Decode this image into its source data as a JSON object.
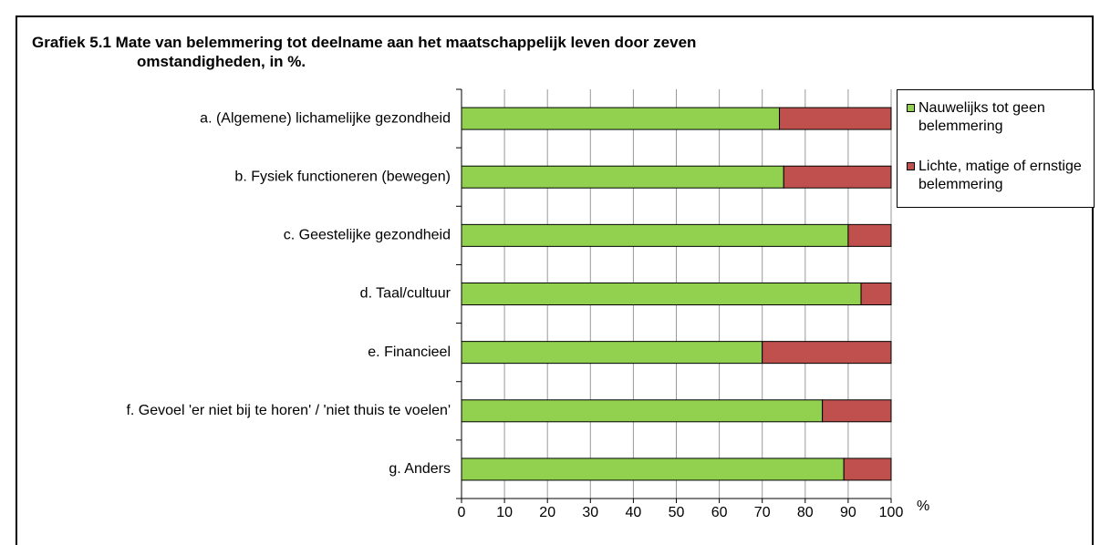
{
  "chart_data": {
    "type": "stacked_barh",
    "title": "Grafiek 5.1 Mate van belemmering tot deelname aan het maatschappelijk leven door zeven omstandigheden, in %.",
    "xlabel": "%",
    "categories": [
      "a. (Algemene) lichamelijke gezondheid",
      "b. Fysiek functioneren (bewegen)",
      "c. Geestelijke gezondheid",
      "d. Taal/cultuur",
      "e. Financieel",
      "f. Gevoel 'er niet bij te horen' / 'niet thuis te voelen'",
      "g. Anders"
    ],
    "series": [
      {
        "name": "Nauwelijks tot geen belemmering",
        "color": "#92d050",
        "values": [
          74,
          75,
          90,
          93,
          70,
          84,
          89
        ]
      },
      {
        "name": "Lichte, matige of ern­stige belemmering",
        "color": "#c0504d",
        "values": [
          26,
          25,
          10,
          7,
          30,
          16,
          11
        ]
      }
    ],
    "xlim": [
      0,
      100
    ],
    "xticks": [
      0,
      10,
      20,
      30,
      40,
      50,
      60,
      70,
      80,
      90,
      100
    ],
    "grid": true,
    "legend": "right"
  }
}
